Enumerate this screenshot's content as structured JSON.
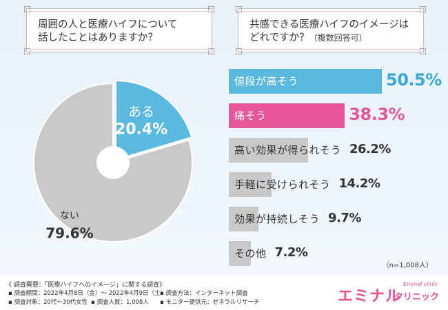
{
  "questions": {
    "q1": {
      "line1": "周囲の人と医療ハイフについて",
      "line2": "話したことはありますか？"
    },
    "q2": {
      "line1": "共感できる医療ハイフのイメージは",
      "line2": "どれですか？",
      "sub": "（複数回答可）"
    }
  },
  "colors": {
    "blue": "#5ab9df",
    "pink": "#e8569a",
    "gray": "#c9c9c9"
  },
  "chart_data": [
    {
      "type": "pie",
      "title": "周囲の人と医療ハイフについて話したことはありますか？",
      "slices": [
        {
          "label": "ある",
          "value": 20.4,
          "display": "20.4%"
        },
        {
          "label": "ない",
          "value": 79.6,
          "display": "79.6%"
        }
      ]
    },
    {
      "type": "bar",
      "orientation": "horizontal",
      "title": "共感できる医療ハイフのイメージはどれですか？（複数回答可）",
      "categories": [
        "値段が高そう",
        "痛そう",
        "高い効果が得られそう",
        "手軽に受けられそう",
        "効果が持続しそう",
        "その他"
      ],
      "values": [
        50.5,
        38.3,
        26.2,
        14.2,
        9.7,
        7.2
      ],
      "displays": [
        "50.5%",
        "38.3%",
        "26.2%",
        "14.2%",
        "9.7%",
        "7.2%"
      ],
      "note": "（n=1,008人）"
    }
  ],
  "footer": {
    "title": "《 調査概要：「医療ハイフへのイメージ」に関する調査》",
    "period": "▪ 調査期間：2022年4月8日（金）～ 2022年4月9日（土）",
    "method": "▪ 調査方法：インターネット調査",
    "target": "▪ 調査対象：20代～30代女性",
    "count": "▪ 調査人数：1,008人",
    "provider": "▪ モニター提供元：ゼネラルリサーチ"
  },
  "logo": {
    "main": "エミナル",
    "sub": "クリニック",
    "en": "Eminal clinic"
  }
}
